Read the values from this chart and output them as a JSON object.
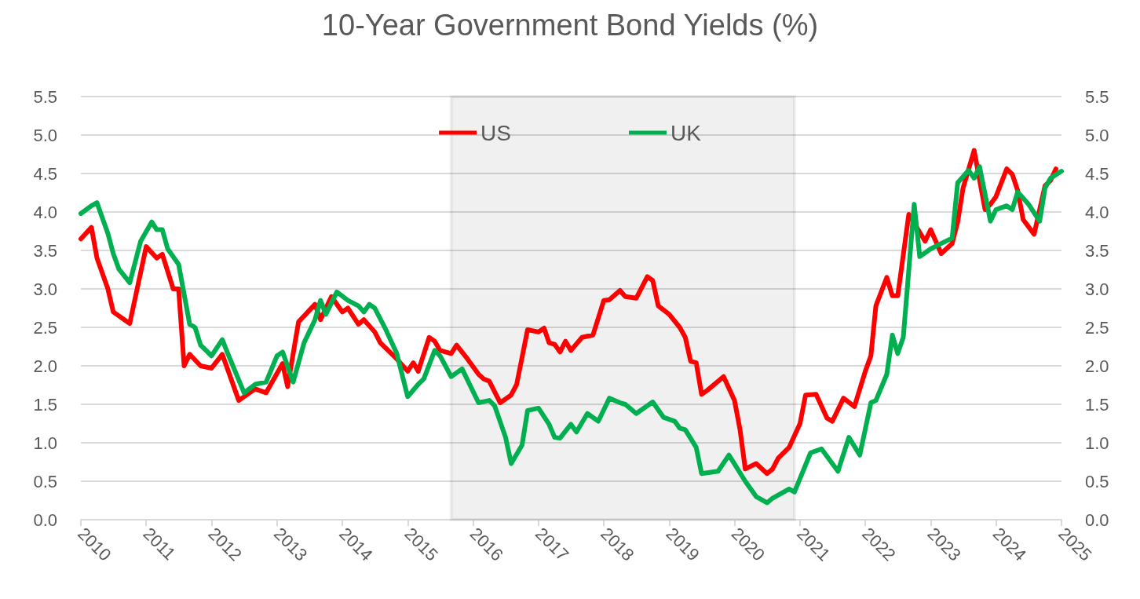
{
  "chart_data": {
    "type": "line",
    "title": "10-Year Government Bond Yields (%)",
    "xlim": [
      "2010-01",
      "2025-01"
    ],
    "xticks": [
      "2010",
      "2011",
      "2012",
      "2013",
      "2014",
      "2015",
      "2016",
      "2017",
      "2018",
      "2019",
      "2020",
      "2021",
      "2022",
      "2023",
      "2024",
      "2025"
    ],
    "ylim": [
      0,
      5.5
    ],
    "yticks": [
      {
        "value": 0,
        "label": "0.0"
      },
      0.5,
      {
        "value": 1,
        "label": "1.0"
      },
      1.5,
      {
        "value": 2,
        "label": "2.0"
      },
      2.5,
      {
        "value": 3,
        "label": "3.0"
      },
      3.5,
      {
        "value": 4,
        "label": "4.0"
      },
      4.5,
      {
        "value": 5,
        "label": "5.0"
      },
      5.5
    ],
    "y2lim": [
      0,
      5.5
    ],
    "y2ticks": [
      {
        "value": 0,
        "label": "0.0"
      },
      0.5,
      {
        "value": 1,
        "label": "1.0"
      },
      1.5,
      {
        "value": 2,
        "label": "2.0"
      },
      2.5,
      {
        "value": 3,
        "label": "3.0"
      },
      3.5,
      {
        "value": 4,
        "label": "4.0"
      },
      4.5,
      {
        "value": 5,
        "label": "5.0"
      },
      5.5
    ],
    "grid": "y",
    "legend": "top",
    "bands": [
      {
        "axis": "x",
        "from": "2015-09",
        "to": "2020-12",
        "color": "#000000"
      }
    ],
    "series": [
      {
        "name": "US",
        "color": "#ff0000",
        "x": [
          "2010-01",
          "2010-03",
          "2010-04",
          "2010-06",
          "2010-07",
          "2010-09",
          "2010-10",
          "2011-01",
          "2011-03",
          "2011-04",
          "2011-06",
          "2011-07",
          "2011-08",
          "2011-09",
          "2011-11",
          "2012-01",
          "2012-03",
          "2012-06",
          "2012-09",
          "2012-11",
          "2013-02",
          "2013-03",
          "2013-05",
          "2013-08",
          "2013-09",
          "2013-11",
          "2014-01",
          "2014-02",
          "2014-04",
          "2014-05",
          "2014-07",
          "2014-08",
          "2014-11",
          "2015-01",
          "2015-02",
          "2015-03",
          "2015-05",
          "2015-06",
          "2015-07",
          "2015-09",
          "2015-10",
          "2015-12",
          "2016-02",
          "2016-03",
          "2016-04",
          "2016-06",
          "2016-08",
          "2016-09",
          "2016-11",
          "2017-01",
          "2017-02",
          "2017-03",
          "2017-04",
          "2017-05",
          "2017-06",
          "2017-07",
          "2017-09",
          "2017-11",
          "2018-01",
          "2018-02",
          "2018-04",
          "2018-05",
          "2018-07",
          "2018-09",
          "2018-10",
          "2018-11",
          "2019-01",
          "2019-03",
          "2019-04",
          "2019-05",
          "2019-06",
          "2019-07",
          "2019-08",
          "2019-11",
          "2020-01",
          "2020-02",
          "2020-03",
          "2020-05",
          "2020-07",
          "2020-08",
          "2020-09",
          "2020-11",
          "2021-01",
          "2021-02",
          "2021-04",
          "2021-06",
          "2021-07",
          "2021-09",
          "2021-11",
          "2022-01",
          "2022-02",
          "2022-03",
          "2022-05",
          "2022-06",
          "2022-07",
          "2022-09",
          "2022-12",
          "2023-01",
          "2023-03",
          "2023-05",
          "2023-06",
          "2023-07",
          "2023-09",
          "2023-11",
          "2023-12",
          "2024-01",
          "2024-03",
          "2024-04",
          "2024-05",
          "2024-06",
          "2024-08",
          "2024-10",
          "2024-11",
          "2024-12"
        ],
        "values": [
          3.65,
          3.8,
          3.4,
          3.0,
          2.7,
          2.6,
          2.55,
          3.55,
          3.4,
          3.45,
          3.0,
          3.0,
          2.0,
          2.15,
          2.0,
          1.97,
          2.15,
          1.55,
          1.7,
          1.65,
          2.03,
          1.73,
          2.57,
          2.8,
          2.6,
          2.9,
          2.7,
          2.75,
          2.54,
          2.6,
          2.44,
          2.3,
          2.09,
          1.93,
          2.04,
          1.93,
          2.37,
          2.32,
          2.2,
          2.16,
          2.27,
          2.09,
          1.89,
          1.83,
          1.8,
          1.52,
          1.62,
          1.76,
          2.47,
          2.44,
          2.49,
          2.3,
          2.28,
          2.18,
          2.32,
          2.2,
          2.37,
          2.4,
          2.85,
          2.86,
          2.98,
          2.9,
          2.88,
          3.16,
          3.11,
          2.78,
          2.67,
          2.5,
          2.37,
          2.06,
          2.04,
          1.63,
          1.68,
          1.86,
          1.55,
          1.17,
          0.66,
          0.73,
          0.6,
          0.66,
          0.8,
          0.94,
          1.25,
          1.62,
          1.63,
          1.32,
          1.28,
          1.58,
          1.47,
          1.93,
          2.13,
          2.78,
          3.15,
          2.91,
          2.91,
          3.97,
          3.62,
          3.77,
          3.46,
          3.59,
          3.87,
          4.31,
          4.8,
          4.03,
          4.1,
          4.2,
          4.56,
          4.49,
          4.28,
          3.9,
          3.71,
          4.34,
          4.41,
          4.56
        ]
      },
      {
        "name": "UK",
        "color": "#00b050",
        "x": [
          "2010-01",
          "2010-03",
          "2010-04",
          "2010-06",
          "2010-07",
          "2010-08",
          "2010-10",
          "2010-12",
          "2011-02",
          "2011-03",
          "2011-04",
          "2011-05",
          "2011-07",
          "2011-09",
          "2011-10",
          "2011-11",
          "2012-01",
          "2012-03",
          "2012-04",
          "2012-07",
          "2012-09",
          "2012-11",
          "2013-01",
          "2013-02",
          "2013-04",
          "2013-06",
          "2013-08",
          "2013-09",
          "2013-10",
          "2013-12",
          "2014-02",
          "2014-04",
          "2014-05",
          "2014-06",
          "2014-07",
          "2014-09",
          "2014-11",
          "2015-01",
          "2015-03",
          "2015-04",
          "2015-06",
          "2015-07",
          "2015-09",
          "2015-11",
          "2016-02",
          "2016-04",
          "2016-05",
          "2016-07",
          "2016-08",
          "2016-10",
          "2016-11",
          "2017-01",
          "2017-03",
          "2017-04",
          "2017-05",
          "2017-07",
          "2017-08",
          "2017-10",
          "2017-12",
          "2018-02",
          "2018-04",
          "2018-05",
          "2018-07",
          "2018-10",
          "2018-12",
          "2019-02",
          "2019-03",
          "2019-04",
          "2019-06",
          "2019-07",
          "2019-10",
          "2019-12",
          "2020-03",
          "2020-05",
          "2020-07",
          "2020-08",
          "2020-11",
          "2020-12",
          "2021-03",
          "2021-05",
          "2021-08",
          "2021-10",
          "2021-12",
          "2022-02",
          "2022-03",
          "2022-05",
          "2022-06",
          "2022-07",
          "2022-08",
          "2022-10",
          "2022-11",
          "2023-01",
          "2023-03",
          "2023-05",
          "2023-06",
          "2023-08",
          "2023-09",
          "2023-10",
          "2023-12",
          "2024-01",
          "2024-03",
          "2024-04",
          "2024-05",
          "2024-07",
          "2024-09",
          "2024-10",
          "2024-11",
          "2025-01"
        ],
        "values": [
          3.98,
          4.08,
          4.12,
          3.72,
          3.46,
          3.26,
          3.08,
          3.62,
          3.87,
          3.77,
          3.77,
          3.52,
          3.32,
          2.54,
          2.5,
          2.27,
          2.13,
          2.34,
          2.16,
          1.65,
          1.76,
          1.79,
          2.13,
          2.18,
          1.79,
          2.3,
          2.6,
          2.85,
          2.67,
          2.96,
          2.85,
          2.78,
          2.7,
          2.8,
          2.75,
          2.47,
          2.16,
          1.6,
          1.76,
          1.83,
          2.2,
          2.13,
          1.86,
          1.96,
          1.52,
          1.55,
          1.48,
          1.07,
          0.73,
          0.97,
          1.42,
          1.45,
          1.24,
          1.07,
          1.06,
          1.24,
          1.14,
          1.38,
          1.28,
          1.58,
          1.52,
          1.5,
          1.38,
          1.53,
          1.33,
          1.28,
          1.19,
          1.17,
          0.94,
          0.6,
          0.63,
          0.84,
          0.5,
          0.3,
          0.22,
          0.28,
          0.4,
          0.36,
          0.87,
          0.92,
          0.63,
          1.07,
          0.84,
          1.52,
          1.55,
          1.89,
          2.4,
          2.16,
          2.37,
          4.1,
          3.42,
          3.52,
          3.59,
          3.66,
          4.38,
          4.54,
          4.44,
          4.59,
          3.88,
          4.03,
          4.08,
          4.03,
          4.26,
          4.1,
          3.88,
          4.31,
          4.44,
          4.53
        ]
      }
    ]
  }
}
